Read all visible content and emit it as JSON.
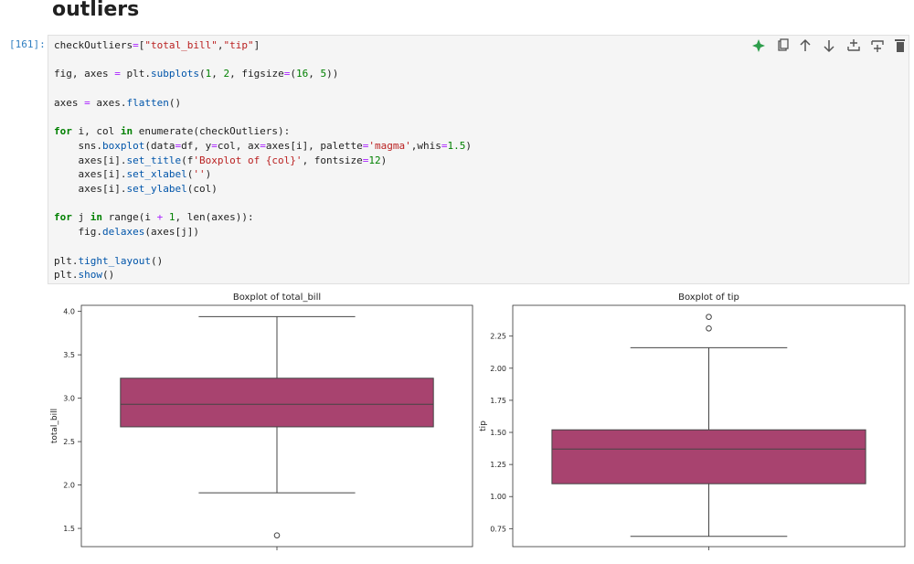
{
  "heading": "outliers",
  "cell": {
    "prompt": "[161]:",
    "code": "checkOutliers=[\"total_bill\",\"tip\"]\n\nfig, axes = plt.subplots(1, 2, figsize=(16, 5))\n\naxes = axes.flatten()\n\nfor i, col in enumerate(checkOutliers):\n    sns.boxplot(data=df, y=col, ax=axes[i], palette='magma',whis=1.5)\n    axes[i].set_title(f'Boxplot of {col}', fontsize=12)\n    axes[i].set_xlabel('')\n    axes[i].set_ylabel(col)\n\nfor j in range(i + 1, len(axes)):\n    fig.delaxes(axes[j])\n\nplt.tight_layout()\nplt.show()"
  },
  "chart_data": [
    {
      "type": "box",
      "title": "Boxplot of total_bill",
      "ylabel": "total_bill",
      "color": "#a8436f",
      "box": {
        "whisker_low": 1.91,
        "q1": 2.67,
        "median": 2.93,
        "q3": 3.23,
        "whisker_high": 3.94,
        "outliers": [
          1.42
        ]
      },
      "ylim": [
        1.29,
        4.07
      ],
      "yticks": [
        1.5,
        {
          "value": 2,
          "label": "2.0"
        },
        2.5,
        {
          "value": 3,
          "label": "3.0"
        },
        3.5,
        {
          "value": 4,
          "label": "4.0"
        }
      ]
    },
    {
      "type": "box",
      "title": "Boxplot of tip",
      "ylabel": "tip",
      "color": "#a8436f",
      "box": {
        "whisker_low": 0.69,
        "q1": 1.1,
        "median": 1.37,
        "q3": 1.52,
        "whisker_high": 2.16,
        "outliers": [
          2.31,
          2.4
        ]
      },
      "ylim": [
        0.61,
        2.49
      ],
      "yticks": [
        0.75,
        {
          "value": 1,
          "label": "1.00"
        },
        1.25,
        {
          "value": 1.5,
          "label": "1.50"
        },
        1.75,
        {
          "value": 2,
          "label": "2.00"
        },
        2.25
      ]
    }
  ]
}
